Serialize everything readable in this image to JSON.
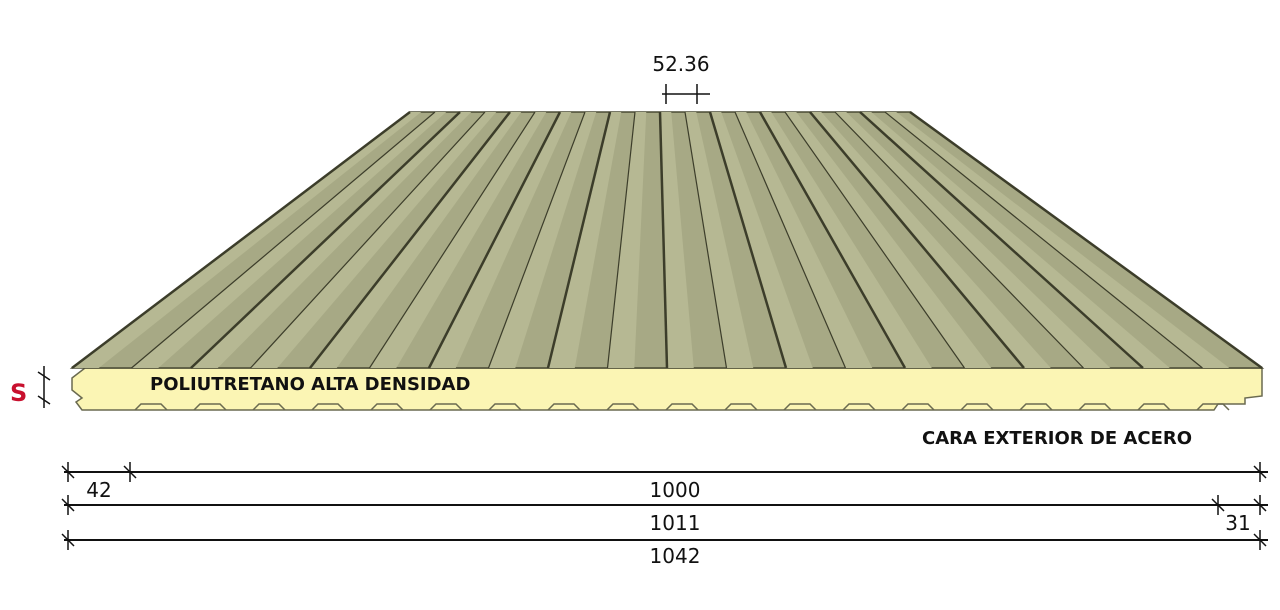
{
  "diagram": {
    "labels": {
      "top_pitch": "52.36",
      "core_material": "POLIUTRETANO ALTA DENSIDAD",
      "exterior_face": "CARA EXTERIOR DE ACERO",
      "thickness_symbol": "S"
    },
    "dimensions": {
      "left_overlap": "42",
      "effective_width": "1000",
      "overall_width": "1011",
      "right_overlap": "31",
      "total_width": "1042"
    },
    "colors": {
      "panel_face": "#a7a985",
      "panel_face_light": "#b6b893",
      "groove_dark": "#3c3d2a",
      "core_foam": "#fbf5b4",
      "dimension_line": "#111111",
      "thickness_symbol": "#c8102e"
    }
  }
}
